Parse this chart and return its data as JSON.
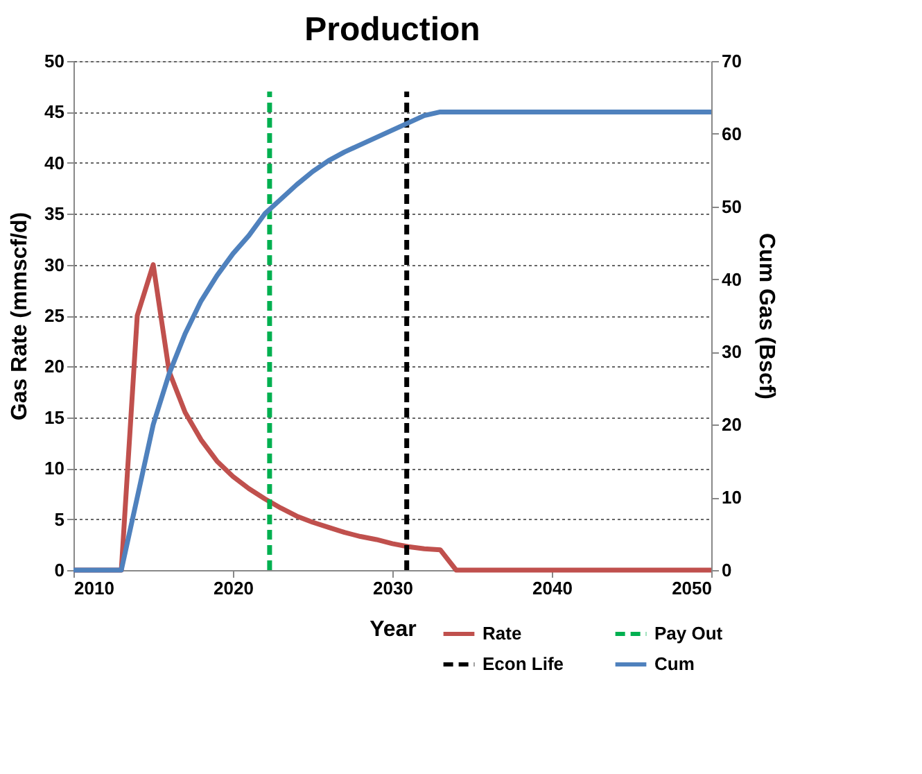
{
  "chart_data": {
    "type": "line",
    "title": "Production",
    "xlabel": "Year",
    "ylabel": "Gas Rate (mmscf/d)",
    "y2label": "Cum Gas (Bscf)",
    "x": [
      2010,
      2013,
      2014,
      2015,
      2016,
      2017,
      2018,
      2019,
      2020,
      2021,
      2022,
      2023,
      2024,
      2025,
      2026,
      2027,
      2028,
      2029,
      2030,
      2031,
      2032,
      2033,
      2034,
      2050
    ],
    "series": [
      {
        "name": "Rate",
        "color": "#c0504d",
        "line_style": "solid",
        "values": [
          0,
          0,
          25,
          30,
          19.5,
          15.5,
          12.8,
          10.7,
          9.2,
          8.0,
          7.0,
          6.1,
          5.3,
          4.7,
          4.2,
          3.7,
          3.3,
          3.0,
          2.6,
          2.3,
          2.1,
          2.0,
          0,
          0
        ]
      },
      {
        "name": "Pay Out",
        "color": "#00b050",
        "line_style": "dashed",
        "x": [
          2022.3,
          2022.3
        ],
        "values": [
          0,
          47
        ]
      },
      {
        "name": "Econ Life",
        "color": "#000000",
        "line_style": "dashed",
        "x": [
          2030.9,
          2030.9
        ],
        "values": [
          0,
          47
        ]
      },
      {
        "name": "Cum",
        "color": "#4f81bd",
        "line_style": "solid",
        "axis": "y2",
        "x": [
          2010,
          2013,
          2014,
          2015,
          2016,
          2017,
          2018,
          2019,
          2020,
          2021,
          2022,
          2023,
          2024,
          2025,
          2026,
          2027,
          2028,
          2029,
          2030,
          2031,
          2032,
          2033,
          2050
        ],
        "values": [
          0,
          0,
          10,
          20,
          27,
          32.5,
          37,
          40.5,
          43.5,
          46,
          49,
          51,
          53,
          54.8,
          56.3,
          57.5,
          58.5,
          59.5,
          60.5,
          61.5,
          62.5,
          63,
          63
        ]
      }
    ],
    "xlim": [
      2010,
      2050
    ],
    "xticks": [
      2010,
      2020,
      2030,
      2040,
      2050
    ],
    "ylim": [
      0,
      50
    ],
    "yticks": [
      0,
      5,
      10,
      15,
      20,
      25,
      30,
      35,
      40,
      45,
      50
    ],
    "y2lim": [
      0,
      70
    ],
    "y2ticks": [
      0,
      10,
      20,
      30,
      40,
      50,
      60,
      70
    ],
    "grid": "y",
    "legend": "bottom right",
    "marker": "none"
  }
}
